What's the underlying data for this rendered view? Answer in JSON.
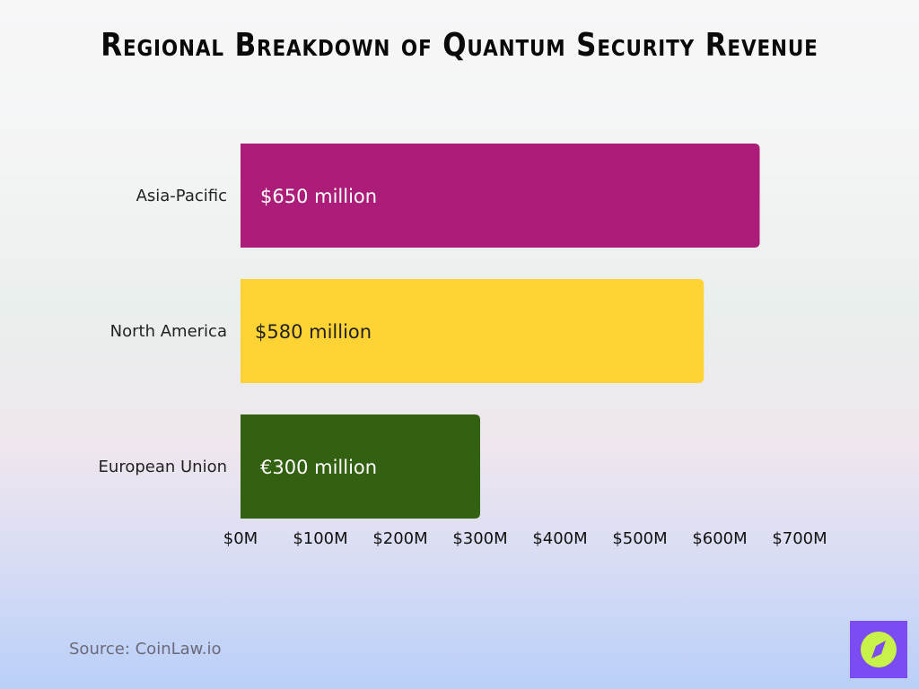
{
  "chart_data": {
    "type": "bar",
    "orientation": "horizontal",
    "title": "Regional Breakdown of Quantum Security Revenue",
    "categories": [
      "Asia-Pacific",
      "North America",
      "European Union"
    ],
    "values": [
      650,
      580,
      300
    ],
    "data_labels": [
      "$650 million",
      "$580 million",
      "€300 million"
    ],
    "colors": [
      "#ab1d79",
      "#ffd334",
      "#336112"
    ],
    "label_colors": [
      "#ffffff",
      "#222222",
      "#ffffff"
    ],
    "xlim": [
      0,
      700
    ],
    "x_ticks": [
      0,
      100,
      200,
      300,
      400,
      500,
      600,
      700
    ],
    "x_tick_labels": [
      "$0M",
      "$100M",
      "$200M",
      "$300M",
      "$400M",
      "$500M",
      "$600M",
      "$700M"
    ],
    "grid": false,
    "legend": "none"
  },
  "source": "Source: CoinLaw.io",
  "logo": {
    "icon": "compass-icon",
    "bg": "#7b4cf2",
    "fg": "#c8f24a"
  }
}
